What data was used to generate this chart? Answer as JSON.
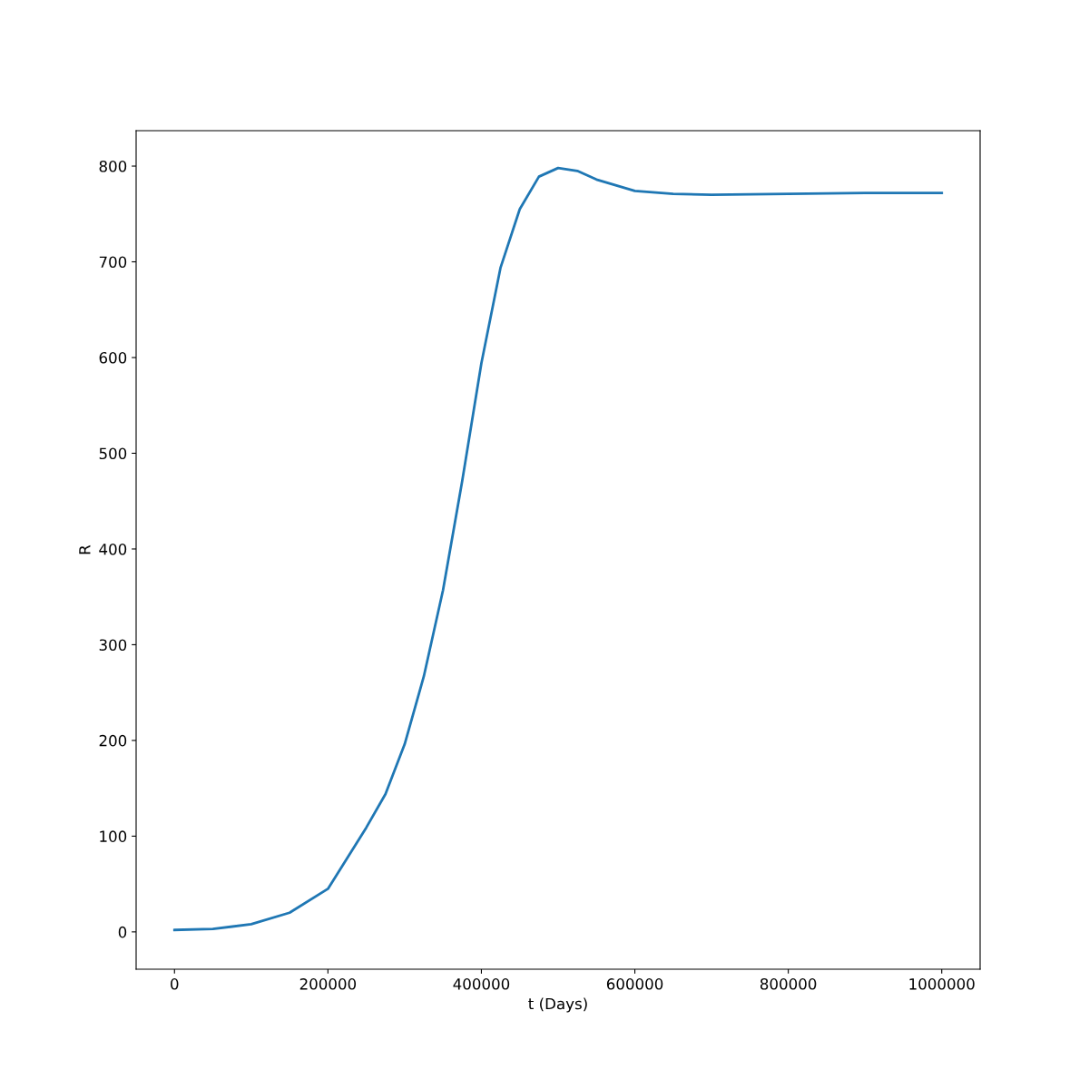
{
  "chart_data": {
    "type": "line",
    "xlabel": "t (Days)",
    "ylabel": "R",
    "x": [
      0,
      50000,
      100000,
      150000,
      200000,
      250000,
      275000,
      300000,
      325000,
      350000,
      375000,
      400000,
      425000,
      450000,
      475000,
      500000,
      525000,
      550000,
      600000,
      650000,
      700000,
      800000,
      900000,
      1000000
    ],
    "series": [
      {
        "color": "#1f77b4",
        "values": [
          2,
          3,
          8,
          20,
          45,
          109,
          144,
          196,
          267,
          357,
          471,
          594,
          694,
          755,
          789,
          798,
          795,
          786,
          774,
          771,
          770,
          771,
          772,
          772
        ]
      }
    ],
    "xlim": [
      -50000,
      1050000
    ],
    "ylim": [
      -39,
      837
    ],
    "xticks": [
      0,
      200000,
      400000,
      600000,
      800000,
      1000000
    ],
    "yticks": [
      0,
      100,
      200,
      300,
      400,
      500,
      600,
      700,
      800
    ],
    "grid": false,
    "legend": false,
    "marker": "none",
    "line_style": "solid"
  }
}
